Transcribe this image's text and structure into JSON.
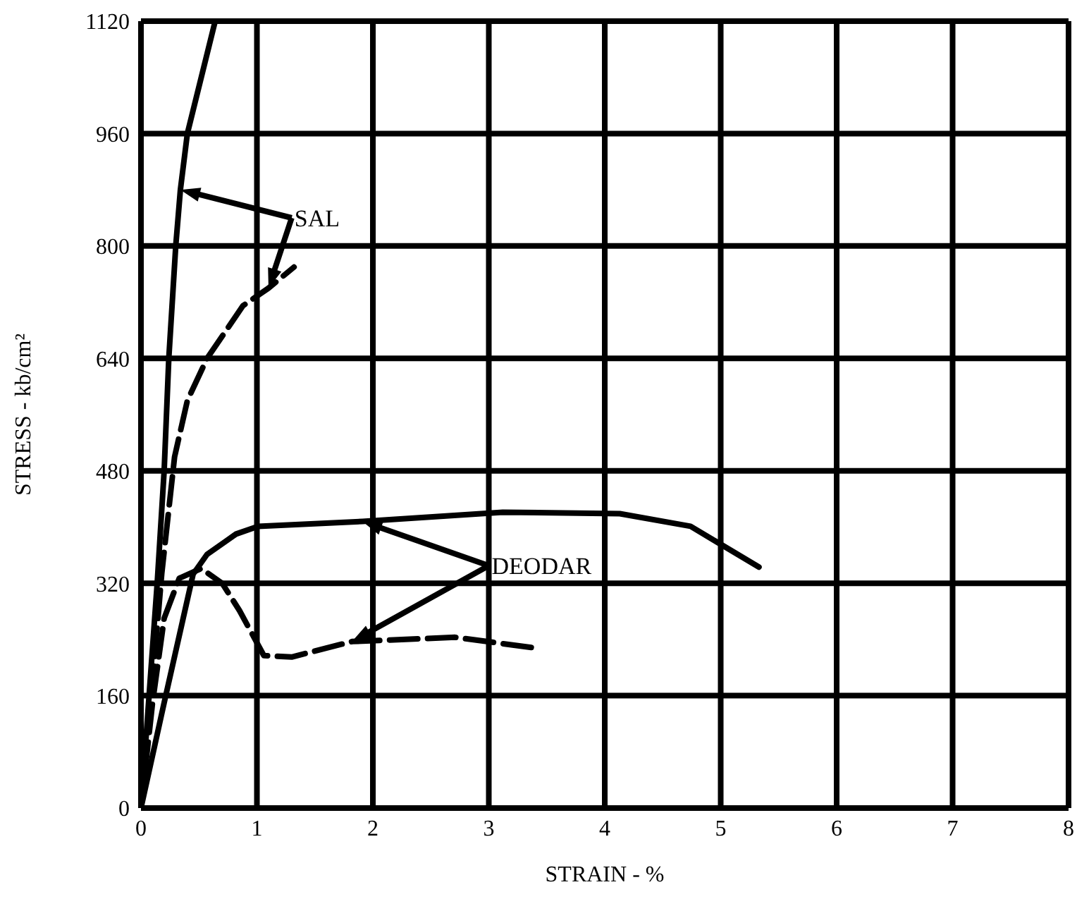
{
  "chart_data": {
    "type": "line",
    "xlabel": "STRAIN - %",
    "ylabel": "STRESS - kb/cm²",
    "xlim": [
      0,
      8
    ],
    "xticks": [
      0,
      1,
      2,
      3,
      4,
      5,
      6,
      7,
      8
    ],
    "ylim": [
      0,
      1120
    ],
    "yticks": [
      0,
      160,
      320,
      480,
      640,
      800,
      960,
      1120
    ],
    "grid": true,
    "marker": "none",
    "series": [
      {
        "color": "#000000",
        "line_style": "solid",
        "x": [
          0,
          0.07,
          0.14,
          0.2,
          0.24,
          0.3,
          0.34,
          0.4,
          0.64
        ],
        "values": [
          0,
          160,
          320,
          480,
          640,
          800,
          880,
          960,
          1120
        ]
      },
      {
        "color": "#000000",
        "line_style": "dashed",
        "x": [
          0,
          0.1,
          0.18,
          0.29,
          0.4,
          0.57,
          0.88,
          1.1,
          1.32
        ],
        "values": [
          0,
          180,
          335,
          500,
          580,
          640,
          715,
          740,
          770
        ]
      },
      {
        "color": "#000000",
        "line_style": "solid",
        "x": [
          0,
          0.2,
          0.45,
          0.57,
          0.82,
          1.01,
          1.91,
          3.12,
          4.13,
          4.74,
          5.33
        ],
        "values": [
          0,
          150,
          333,
          361,
          390,
          401,
          408,
          421,
          419,
          401,
          343
        ]
      },
      {
        "color": "#000000",
        "line_style": "dashed",
        "x": [
          0,
          0.1,
          0.2,
          0.33,
          0.52,
          0.7,
          0.85,
          1.06,
          1.3,
          1.82,
          2.71,
          3.44
        ],
        "values": [
          0,
          150,
          270,
          327,
          341,
          320,
          281,
          217,
          215,
          237,
          243,
          227
        ]
      }
    ],
    "annotations": [
      "SAL",
      "DEODAR"
    ]
  }
}
